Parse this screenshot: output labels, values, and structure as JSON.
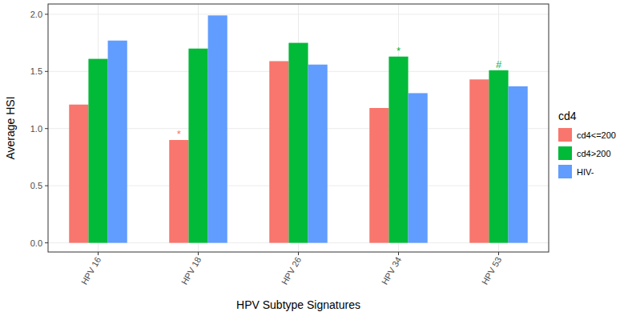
{
  "chart_data": {
    "type": "bar",
    "x_label": "HPV Subtype Signatures",
    "y_label": "Average HSI",
    "legend_title": "cd4",
    "legend": "right",
    "grid": true,
    "categories": [
      "HPV 16",
      "HPV 18",
      "HPV 26",
      "HPV 34",
      "HPV 53"
    ],
    "series": [
      {
        "name": "cd4<=200",
        "color": "#F8766D",
        "values": [
          1.21,
          0.9,
          1.59,
          1.18,
          1.43
        ]
      },
      {
        "name": "cd4>200",
        "color": "#00BA38",
        "values": [
          1.61,
          1.7,
          1.75,
          1.63,
          1.51
        ]
      },
      {
        "name": "HIV-",
        "color": "#619CFF",
        "values": [
          1.77,
          1.99,
          1.56,
          1.31,
          1.37
        ]
      }
    ],
    "ylim": [
      -0.08,
      2.09
    ],
    "yticks": [
      {
        "value": 0,
        "label": "0.0"
      },
      0.5,
      {
        "value": 1,
        "label": "1.0"
      },
      1.5,
      {
        "value": 2,
        "label": "2.0"
      }
    ],
    "annotations": [
      {
        "text": "*",
        "category": "HPV 18",
        "series": "cd4<=200"
      },
      {
        "text": "*",
        "category": "HPV 34",
        "series": "cd4>200"
      },
      {
        "text": "#",
        "category": "HPV 53",
        "series": "cd4>200"
      }
    ]
  }
}
